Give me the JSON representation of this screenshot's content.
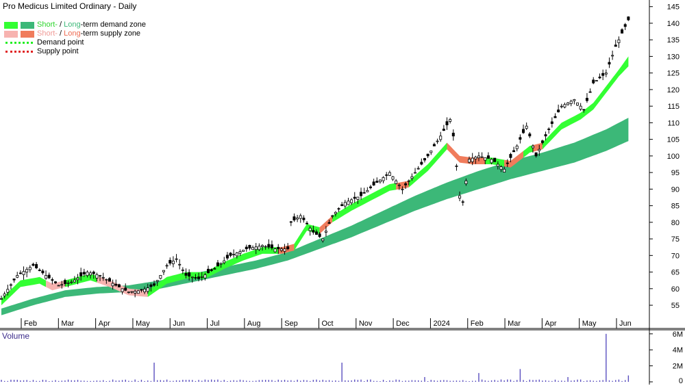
{
  "title": "Pro Medicus Limited Ordinary - Daily",
  "legend": {
    "demand_short": "Short-",
    "demand_sep": " / ",
    "demand_long": "Long",
    "demand_rest": "-term demand zone",
    "supply_short": "Short-",
    "supply_sep": " / ",
    "supply_long": "Long",
    "supply_rest": "-term supply zone",
    "demand_point": "Demand point",
    "supply_point": "Supply point"
  },
  "colors": {
    "short_demand": "#33ff33",
    "long_demand": "#3cb878",
    "short_supply": "#f7b3b0",
    "long_supply": "#f07c5c",
    "demand_point": "#22ee22",
    "supply_point": "#e02020",
    "candle": "#000000",
    "volume": "#5a4fbf",
    "volume_label": "#3a2a8a",
    "grid": "#bdbdbd"
  },
  "volume_label": "Volume",
  "chart_data": {
    "type": "candlestick",
    "title": "Pro Medicus Limited Ordinary - Daily",
    "x_labels": [
      "Feb",
      "Mar",
      "Apr",
      "May",
      "Jun",
      "Jul",
      "Aug",
      "Sep",
      "Oct",
      "Nov",
      "Dec",
      "2024",
      "Feb",
      "Mar",
      "Apr",
      "May",
      "Jun"
    ],
    "y_ticks": [
      55,
      60,
      65,
      70,
      75,
      80,
      85,
      90,
      95,
      100,
      105,
      110,
      115,
      120,
      125,
      130,
      135,
      140,
      145
    ],
    "ylim": [
      48,
      147
    ],
    "volume_ticks": [
      "0",
      "2M",
      "4M",
      "6M"
    ],
    "volume_ylim": [
      0,
      6500000
    ],
    "price_path": [
      [
        0,
        57
      ],
      [
        5,
        64
      ],
      [
        10,
        67
      ],
      [
        14,
        64
      ],
      [
        18,
        61
      ],
      [
        22,
        62
      ],
      [
        27,
        65
      ],
      [
        31,
        64
      ],
      [
        36,
        61
      ],
      [
        40,
        59
      ],
      [
        44,
        59.5
      ],
      [
        48,
        61
      ],
      [
        52,
        67
      ],
      [
        55,
        69
      ],
      [
        58,
        64
      ],
      [
        62,
        63
      ],
      [
        67,
        66
      ],
      [
        72,
        70
      ],
      [
        77,
        72
      ],
      [
        82,
        73
      ],
      [
        86,
        72
      ],
      [
        90,
        72
      ],
      [
        91,
        80
      ],
      [
        94,
        82
      ],
      [
        98,
        77
      ],
      [
        101,
        75
      ],
      [
        104,
        82
      ],
      [
        108,
        86
      ],
      [
        113,
        88
      ],
      [
        118,
        92
      ],
      [
        122,
        95
      ],
      [
        126,
        90
      ],
      [
        130,
        95
      ],
      [
        134,
        100
      ],
      [
        138,
        106
      ],
      [
        141,
        111
      ],
      [
        142,
        106
      ],
      [
        144,
        88
      ],
      [
        145,
        86
      ],
      [
        147,
        99
      ],
      [
        150,
        100
      ],
      [
        154,
        99
      ],
      [
        158,
        96
      ],
      [
        162,
        103
      ],
      [
        165,
        109
      ],
      [
        168,
        100
      ],
      [
        172,
        108
      ],
      [
        176,
        115
      ],
      [
        180,
        117
      ],
      [
        183,
        114
      ],
      [
        186,
        122
      ],
      [
        190,
        125
      ],
      [
        193,
        133
      ],
      [
        196,
        139
      ],
      [
        198,
        143
      ]
    ],
    "short_zone": [
      [
        0,
        57,
        55
      ],
      [
        6,
        62.5,
        60.5
      ],
      [
        12,
        63.5,
        61.5
      ],
      [
        16,
        61.5,
        59.5
      ],
      [
        22,
        63,
        61
      ],
      [
        28,
        64.5,
        62.5
      ],
      [
        34,
        62.5,
        60.5
      ],
      [
        40,
        60,
        58
      ],
      [
        46,
        59.5,
        57.5
      ],
      [
        52,
        63.5,
        61.5
      ],
      [
        58,
        65,
        63
      ],
      [
        64,
        65,
        63
      ],
      [
        70,
        68,
        66
      ],
      [
        76,
        70.5,
        68.5
      ],
      [
        82,
        72.5,
        70.5
      ],
      [
        88,
        72.5,
        70.5
      ],
      [
        92,
        73.5,
        71.5
      ],
      [
        96,
        79.5,
        77.5
      ],
      [
        100,
        78.5,
        76.5
      ],
      [
        104,
        82,
        80
      ],
      [
        110,
        85.5,
        83.5
      ],
      [
        116,
        88.5,
        86.5
      ],
      [
        122,
        91.5,
        89.5
      ],
      [
        128,
        92.5,
        90.5
      ],
      [
        134,
        97.5,
        95.5
      ],
      [
        140,
        104,
        102
      ],
      [
        144,
        100,
        98
      ],
      [
        148,
        99.5,
        97.5
      ],
      [
        154,
        99.5,
        97.5
      ],
      [
        160,
        98.5,
        96.5
      ],
      [
        166,
        103,
        101
      ],
      [
        170,
        104,
        102
      ],
      [
        176,
        110,
        108
      ],
      [
        182,
        113,
        111
      ],
      [
        186,
        116,
        114
      ],
      [
        190,
        121,
        119
      ],
      [
        194,
        126,
        124
      ],
      [
        197,
        130,
        127
      ]
    ],
    "short_supply_segments": [
      [
        14,
        20
      ],
      [
        30,
        46
      ],
      [
        87,
        92
      ],
      [
        100,
        104
      ],
      [
        124,
        128
      ],
      [
        140,
        152
      ],
      [
        158,
        164
      ],
      [
        167,
        170
      ]
    ],
    "long_zone": [
      [
        0,
        54,
        52
      ],
      [
        10,
        57,
        55
      ],
      [
        20,
        59.5,
        57.5
      ],
      [
        30,
        60.5,
        58.5
      ],
      [
        40,
        61,
        59
      ],
      [
        50,
        62.5,
        60
      ],
      [
        60,
        64.5,
        62
      ],
      [
        70,
        66.5,
        64
      ],
      [
        80,
        68.5,
        66
      ],
      [
        90,
        71,
        68.5
      ],
      [
        100,
        75,
        72
      ],
      [
        110,
        79,
        75.5
      ],
      [
        120,
        83.5,
        79.5
      ],
      [
        130,
        88,
        83.5
      ],
      [
        140,
        92,
        87
      ],
      [
        150,
        95.5,
        90
      ],
      [
        160,
        98.5,
        93
      ],
      [
        170,
        101,
        95.5
      ],
      [
        180,
        104,
        98
      ],
      [
        190,
        108,
        101.5
      ],
      [
        197,
        111.5,
        104.5
      ]
    ],
    "volume_series": "mostly low (~0.1–0.3M) with spikes near Apr (~2.4M), late Oct (~2.4M), Feb (~1.1M), Apr (~1.6M) and a large spike in early Jun (~6M)",
    "volume_spikes": [
      [
        48,
        2400000
      ],
      [
        107,
        2400000
      ],
      [
        133,
        600000
      ],
      [
        150,
        1100000
      ],
      [
        163,
        1600000
      ],
      [
        178,
        600000
      ],
      [
        190,
        6000000
      ],
      [
        197,
        800000
      ]
    ]
  }
}
